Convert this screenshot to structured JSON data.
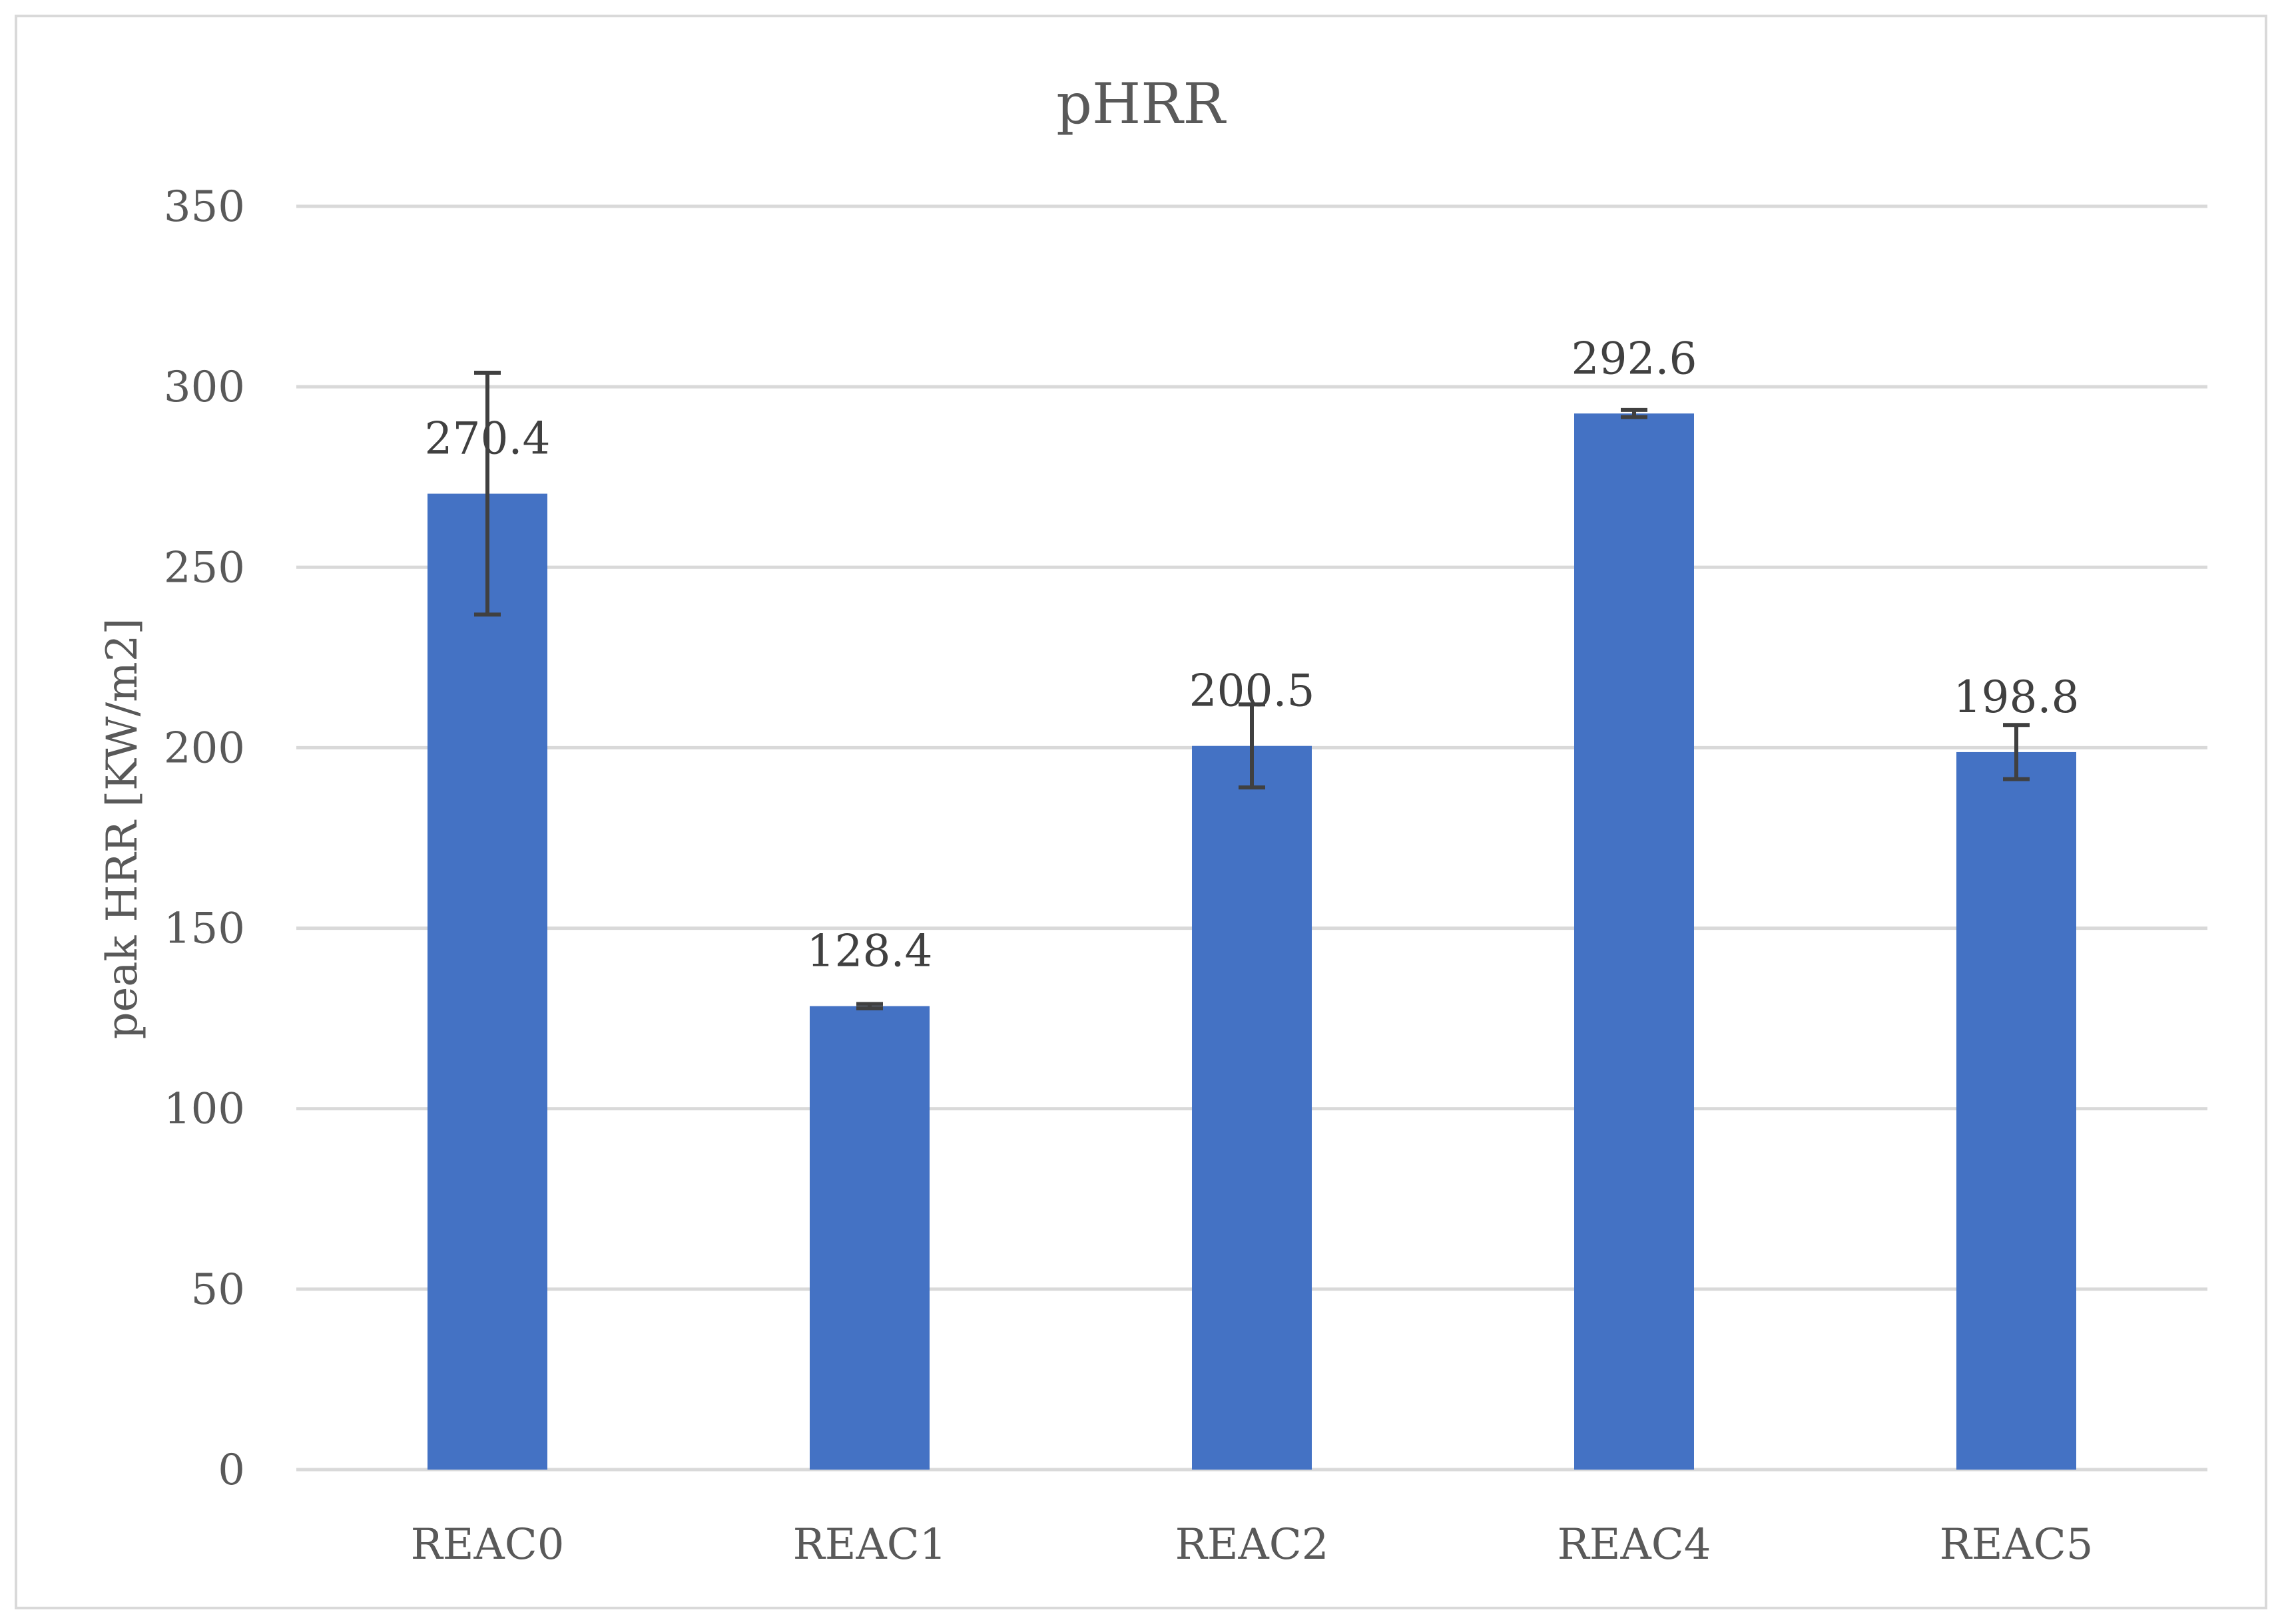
{
  "chart_data": {
    "type": "bar",
    "title": "pHRR",
    "xlabel": "",
    "ylabel": "peak HRR [KW/m2]",
    "categories": [
      "REAC0",
      "REAC1",
      "REAC2",
      "REAC4",
      "REAC5"
    ],
    "values": [
      270.4,
      128.4,
      200.5,
      292.6,
      198.8
    ],
    "value_labels": [
      "270.4",
      "128.4",
      "200.5",
      "292.6",
      "198.8"
    ],
    "error": [
      33.5,
      0.6,
      11.5,
      1.0,
      7.5
    ],
    "ylim": [
      0,
      350
    ],
    "yticks": [
      0,
      50,
      100,
      150,
      200,
      250,
      300,
      350
    ],
    "ytick_labels": [
      "0",
      "50",
      "100",
      "150",
      "200",
      "250",
      "300",
      "350"
    ],
    "grid": true,
    "legend": "none",
    "bar_color": "#4472c4",
    "error_bar_color": "#404040"
  }
}
